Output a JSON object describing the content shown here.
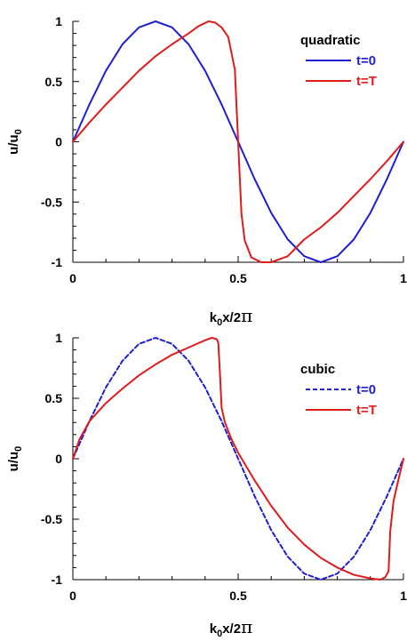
{
  "chart_data": [
    {
      "type": "line",
      "legend_title": "quadratic",
      "xlabel_main": "k",
      "xlabel_sub": "0",
      "xlabel_rest": "x/2",
      "xlabel_pi": "π",
      "ylabel_main": "u/u",
      "ylabel_sub": "0",
      "xlim": [
        0,
        1
      ],
      "ylim": [
        -1,
        1
      ],
      "xticks": [
        "0",
        "0.5",
        "1"
      ],
      "yticks": [
        "1",
        "0.5",
        "0",
        "-0.5",
        "-1"
      ],
      "grid": false,
      "legend_position": "top-right",
      "series": [
        {
          "name": "t=0",
          "color": "#1f1fd0",
          "style": "solid",
          "x": [
            0,
            0.05,
            0.1,
            0.15,
            0.2,
            0.25,
            0.3,
            0.35,
            0.4,
            0.45,
            0.5,
            0.55,
            0.6,
            0.65,
            0.7,
            0.75,
            0.8,
            0.85,
            0.9,
            0.95,
            1.0
          ],
          "y": [
            0,
            0.31,
            0.59,
            0.81,
            0.95,
            1.0,
            0.95,
            0.81,
            0.59,
            0.31,
            0,
            -0.31,
            -0.59,
            -0.81,
            -0.95,
            -1.0,
            -0.95,
            -0.81,
            -0.59,
            -0.31,
            0
          ]
        },
        {
          "name": "t=T",
          "color": "#e01b1b",
          "style": "solid",
          "x": [
            0,
            0.05,
            0.1,
            0.15,
            0.2,
            0.25,
            0.3,
            0.35,
            0.38,
            0.41,
            0.43,
            0.45,
            0.47,
            0.49,
            0.5,
            0.51,
            0.52,
            0.54,
            0.57,
            0.6,
            0.65,
            0.7,
            0.75,
            0.8,
            0.85,
            0.9,
            0.95,
            1.0
          ],
          "y": [
            0,
            0.16,
            0.31,
            0.45,
            0.59,
            0.71,
            0.81,
            0.9,
            0.96,
            1.0,
            0.99,
            0.95,
            0.87,
            0.6,
            0,
            -0.6,
            -0.82,
            -0.96,
            -1.0,
            -1.0,
            -0.95,
            -0.81,
            -0.71,
            -0.59,
            -0.45,
            -0.31,
            -0.16,
            0
          ]
        }
      ]
    },
    {
      "type": "line",
      "legend_title": "cubic",
      "xlabel_main": "k",
      "xlabel_sub": "0",
      "xlabel_rest": "x/2",
      "xlabel_pi": "π",
      "ylabel_main": "u/u",
      "ylabel_sub": "0",
      "xlim": [
        0,
        1
      ],
      "ylim": [
        -1,
        1
      ],
      "xticks": [
        "0",
        "0.5",
        "1"
      ],
      "yticks": [
        "1",
        "0.5",
        "0",
        "-0.5",
        "-1"
      ],
      "grid": false,
      "legend_position": "top-right",
      "series": [
        {
          "name": "t=0",
          "color": "#1f1fd0",
          "style": "dashed",
          "x": [
            0,
            0.05,
            0.1,
            0.15,
            0.2,
            0.25,
            0.3,
            0.35,
            0.4,
            0.45,
            0.5,
            0.55,
            0.6,
            0.65,
            0.7,
            0.75,
            0.8,
            0.85,
            0.9,
            0.95,
            1.0
          ],
          "y": [
            0,
            0.31,
            0.59,
            0.81,
            0.95,
            1.0,
            0.95,
            0.81,
            0.59,
            0.31,
            0,
            -0.31,
            -0.59,
            -0.81,
            -0.95,
            -1.0,
            -0.95,
            -0.81,
            -0.59,
            -0.31,
            0
          ]
        },
        {
          "name": "t=T",
          "color": "#e01b1b",
          "style": "solid",
          "x": [
            0,
            0.02,
            0.05,
            0.1,
            0.15,
            0.2,
            0.25,
            0.3,
            0.35,
            0.4,
            0.42,
            0.435,
            0.44,
            0.445,
            0.45,
            0.46,
            0.48,
            0.5,
            0.55,
            0.6,
            0.65,
            0.7,
            0.75,
            0.8,
            0.85,
            0.9,
            0.93,
            0.945,
            0.955,
            0.96,
            0.97,
            0.98,
            1.0
          ],
          "y": [
            0,
            0.16,
            0.31,
            0.46,
            0.58,
            0.69,
            0.78,
            0.86,
            0.92,
            0.98,
            1.0,
            0.99,
            0.96,
            0.7,
            0.42,
            0.3,
            0.16,
            0.05,
            -0.18,
            -0.39,
            -0.57,
            -0.71,
            -0.82,
            -0.9,
            -0.96,
            -0.99,
            -1.0,
            -0.98,
            -0.93,
            -0.6,
            -0.35,
            -0.23,
            0
          ]
        }
      ]
    }
  ]
}
